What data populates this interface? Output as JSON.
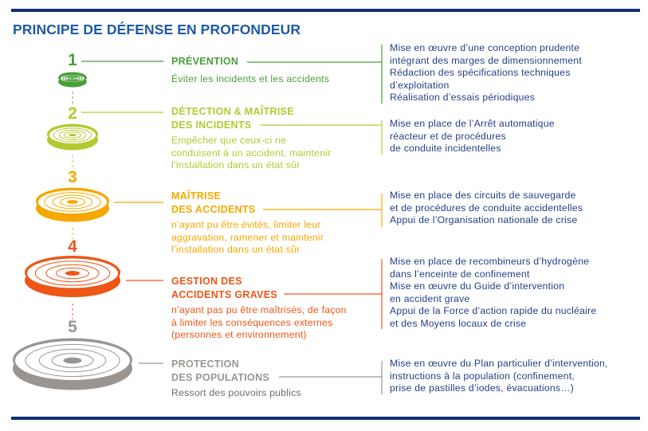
{
  "title": "PRINCIPE DE DÉFENSE EN PROFONDEUR",
  "colors": {
    "navy": "#132f74",
    "title": "#1d5aa6",
    "right_text": "#213f85"
  },
  "levels": [
    {
      "number": "1",
      "color": "#4a9e3a",
      "heading": [
        "PRÉVENTION"
      ],
      "description": [
        "Éviter les incidents et les accidents"
      ],
      "measures": [
        "Mise en œuvre d’une conception prudente",
        "intégrant des marges de dimensionnement",
        "Rédaction des spécifications techniques",
        "d’exploitation",
        "Réalisation d’essais périodiques"
      ]
    },
    {
      "number": "2",
      "color": "#b3c92f",
      "heading": [
        "DÉTECTION & MAÎTRISE",
        "DES INCIDENTS"
      ],
      "description": [
        "Empêcher que ceux-ci ne",
        "conduisent à un accident, maintenir",
        "l’installation dans un état sûr"
      ],
      "measures": [
        "Mise en place de l’Arrêt automatique",
        "réacteur et de procédures",
        "de conduite incidentelles"
      ]
    },
    {
      "number": "3",
      "color": "#f6a800",
      "heading": [
        "MAÎTRISE",
        "DES ACCIDENTS"
      ],
      "description": [
        "n’ayant pu être évités, limiter leur",
        "aggravation, ramener et maintenir",
        "l’installation dans un état sûr"
      ],
      "measures": [
        "Mise en place des circuits de sauvegarde",
        "et de procédures de conduite accidentelles",
        "Appui de l’Organisation nationale de crise"
      ]
    },
    {
      "number": "4",
      "color": "#ee5516",
      "heading": [
        "GESTION DES",
        "ACCIDENTS GRAVES"
      ],
      "description": [
        "n’ayant pas pu être maîtrisés, de façon",
        "à limiter les conséquences externes",
        "(personnes et environnement)"
      ],
      "measures": [
        "Mise en place de recombineurs d’hydrogène",
        "dans l’enceinte de confinement",
        "Mise en œuvre du Guide d’intervention",
        "en accident grave",
        "Appui de la Force d’action rapide du nucléaire",
        "et des Moyens locaux de crise"
      ]
    },
    {
      "number": "5",
      "color": "#9a9591",
      "heading": [
        "PROTECTION",
        "DES POPULATIONS"
      ],
      "description": [
        "Ressort des pouvoirs publics"
      ],
      "measures": [
        "Mise en œuvre du Plan particulier d’intervention,",
        "instructions à la population (confinement,",
        "prise de pastilles d’iodes, évacuations…)"
      ]
    }
  ]
}
